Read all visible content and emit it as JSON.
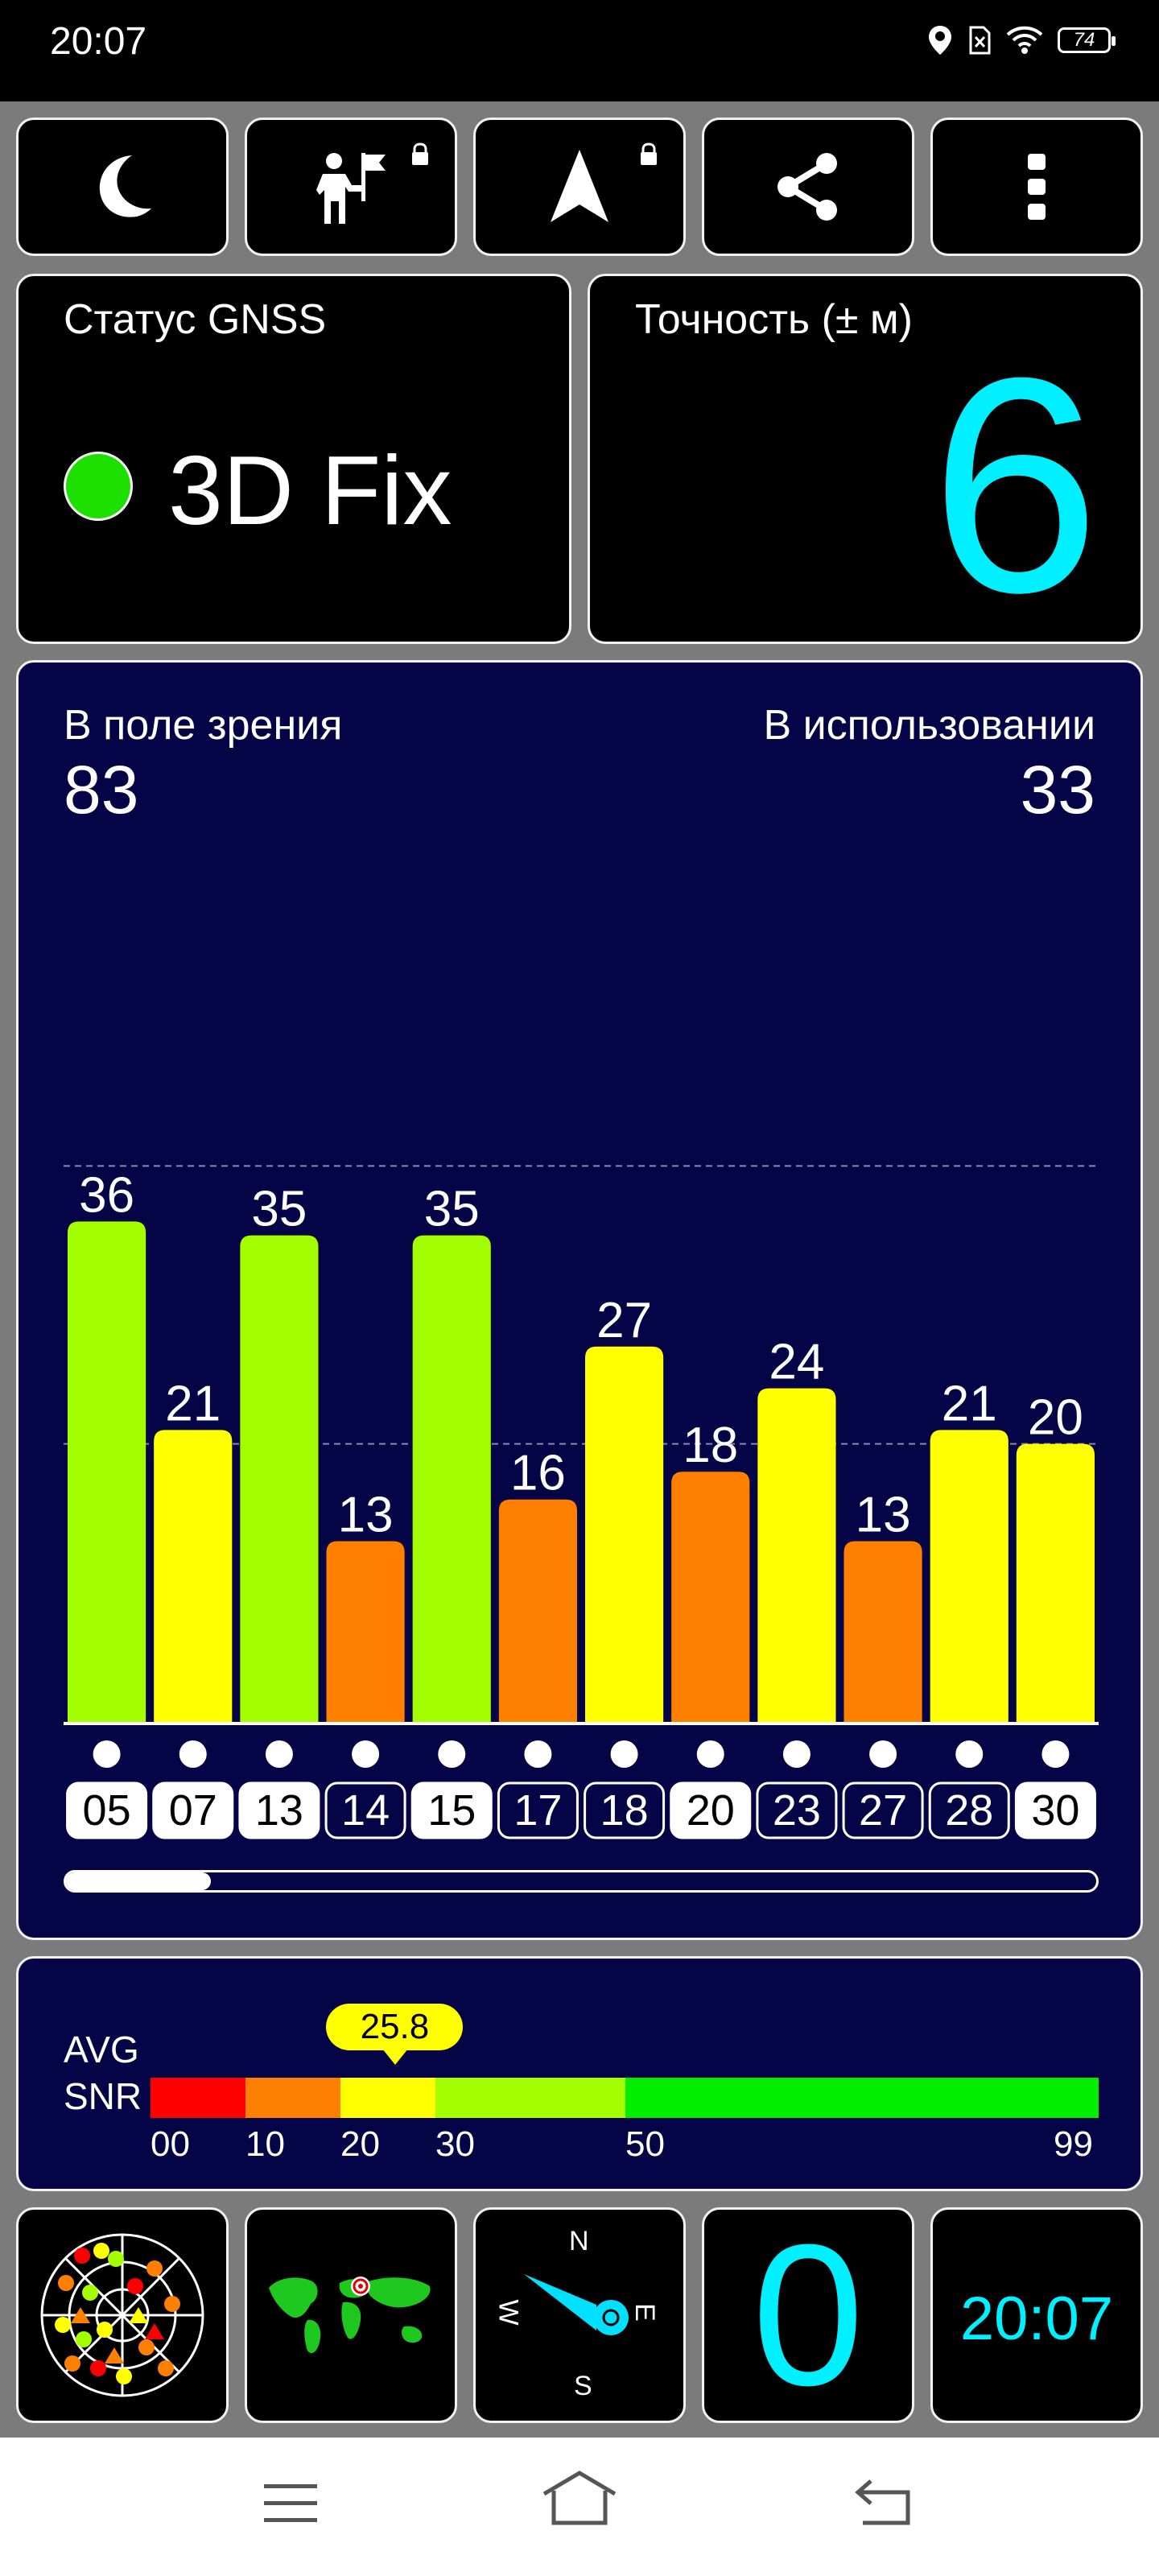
{
  "status_bar": {
    "time": "20:07",
    "battery": "74"
  },
  "toolbar": {
    "buttons": [
      {
        "name": "night-mode-button",
        "icon": "moon-icon"
      },
      {
        "name": "waypoint-button",
        "icon": "person-flag-icon",
        "locked": true
      },
      {
        "name": "navigate-button",
        "icon": "navigation-arrow-icon",
        "locked": true
      },
      {
        "name": "share-button",
        "icon": "share-icon"
      },
      {
        "name": "menu-button",
        "icon": "more-vertical-icon"
      }
    ]
  },
  "gnss": {
    "label": "Статус GNSS",
    "status": "3D Fix",
    "status_color": "#1ee000"
  },
  "accuracy": {
    "label": "Точность (± м)",
    "value": "6",
    "color": "#00f0ff"
  },
  "satellites": {
    "in_view_label": "В поле зрения",
    "in_view": "83",
    "in_use_label": "В использовании",
    "in_use": "33"
  },
  "chart_data": {
    "type": "bar",
    "categories": [
      "05",
      "07",
      "13",
      "14",
      "15",
      "17",
      "18",
      "20",
      "23",
      "27",
      "28",
      "30"
    ],
    "values": [
      36,
      21,
      35,
      13,
      35,
      16,
      27,
      18,
      24,
      13,
      21,
      20
    ],
    "used": [
      true,
      true,
      true,
      false,
      true,
      false,
      false,
      true,
      false,
      false,
      false,
      true
    ],
    "colors": {
      "low": "#ff8000",
      "mid": "#ffff00",
      "high": "#a3ff00"
    },
    "ylim": [
      0,
      60
    ],
    "grid": true
  },
  "snr": {
    "label_line1": "AVG",
    "label_line2": "SNR",
    "avg": "25.8",
    "avg_value": 25.8,
    "ticks": [
      "00",
      "10",
      "20",
      "30",
      "50",
      "99"
    ],
    "segment_colors": [
      "#ff0000",
      "#ff8000",
      "#ffff00",
      "#a3ff00",
      "#00ee00"
    ]
  },
  "bottom_widgets": {
    "speed": "0",
    "clock": "20:07",
    "compass": {
      "n": "N",
      "e": "E",
      "s": "S",
      "w": "W"
    }
  }
}
